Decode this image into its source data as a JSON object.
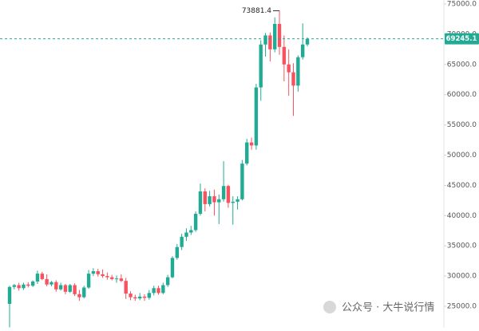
{
  "chart_data": {
    "type": "candlestick",
    "ylim": [
      21440,
      75660
    ],
    "yticks": [
      {
        "value": 75000,
        "label": "75000.0"
      },
      {
        "value": 70000,
        "label": "70000.0"
      },
      {
        "value": 65000,
        "label": "65000.0"
      },
      {
        "value": 60000,
        "label": "60000.0"
      },
      {
        "value": 55000,
        "label": "55000.0"
      },
      {
        "value": 50000,
        "label": "50000.0"
      },
      {
        "value": 45000,
        "label": "45000.0"
      },
      {
        "value": 40000,
        "label": "40000.0"
      },
      {
        "value": 35000,
        "label": "35000.0"
      },
      {
        "value": 30000,
        "label": "30000.0"
      },
      {
        "value": 25000,
        "label": "25000.0"
      }
    ],
    "up_color": "#22ab94",
    "down_color": "#f7525f",
    "open": [
      25400,
      28200,
      28500,
      28000,
      28600,
      28400,
      29100,
      30400,
      29500,
      28600,
      29000,
      27800,
      28500,
      27400,
      28500,
      27000,
      26500,
      28100,
      30400,
      30800,
      30300,
      30000,
      29800,
      29500,
      29600,
      29200,
      27100,
      26500,
      26300,
      26600,
      26400,
      27200,
      28000,
      27200,
      28500,
      29800,
      33000,
      34800,
      36500,
      37200,
      37600,
      40300,
      44000,
      41900,
      43200,
      42200,
      42700,
      44900,
      42100,
      42300,
      42700,
      48600,
      52100,
      51600,
      61200,
      68300,
      69800,
      67500,
      71700,
      67900,
      65000,
      63700,
      61500,
      66200,
      68300
    ],
    "high": [
      28400,
      28700,
      28900,
      28900,
      29000,
      29300,
      30900,
      30700,
      30300,
      29200,
      29300,
      28900,
      28700,
      28700,
      28800,
      27700,
      28400,
      31000,
      31300,
      31200,
      31100,
      30600,
      30200,
      30100,
      30300,
      29700,
      27500,
      26900,
      27200,
      27000,
      27700,
      28400,
      28400,
      28900,
      30200,
      33300,
      35300,
      37000,
      37900,
      38300,
      40700,
      45300,
      44500,
      44100,
      44300,
      43500,
      49000,
      45100,
      43200,
      43200,
      49200,
      52700,
      52900,
      61800,
      69000,
      70200,
      70300,
      72800,
      73881.4,
      69800,
      67500,
      65200,
      66500,
      71800,
      69500
    ],
    "low": [
      21500,
      27800,
      27600,
      27700,
      28100,
      28200,
      28700,
      29300,
      28300,
      28300,
      27400,
      27600,
      27000,
      27200,
      26700,
      25900,
      26300,
      27900,
      30000,
      29900,
      29700,
      29400,
      29300,
      28900,
      29000,
      26200,
      26000,
      25900,
      26000,
      25900,
      26100,
      26800,
      26900,
      27000,
      28200,
      29600,
      32700,
      34300,
      35800,
      36800,
      37300,
      40000,
      40700,
      41500,
      40000,
      38600,
      42300,
      41300,
      38500,
      41000,
      42500,
      48300,
      50900,
      50900,
      59000,
      66300,
      65500,
      67000,
      66600,
      62200,
      59800,
      56500,
      60500,
      65800,
      68000
    ],
    "close": [
      28200,
      28500,
      28000,
      28600,
      28400,
      29100,
      30400,
      29500,
      28600,
      29000,
      27800,
      28500,
      27400,
      28500,
      27000,
      26500,
      28100,
      30400,
      30800,
      30300,
      30000,
      29800,
      29500,
      29600,
      29200,
      27100,
      26500,
      26300,
      26600,
      26400,
      27200,
      28000,
      27200,
      28500,
      29800,
      33000,
      34800,
      36500,
      37200,
      37600,
      40300,
      44000,
      41900,
      43200,
      42200,
      42700,
      44900,
      42100,
      42300,
      42700,
      48600,
      52100,
      51600,
      61200,
      68300,
      69800,
      67500,
      71700,
      67900,
      65000,
      63700,
      61500,
      66200,
      68300,
      69245.1
    ],
    "last_price": 69245.1,
    "last_price_color": "#22ab94",
    "max_high": 73881.4,
    "watermark": "公众号 · 大牛说行情"
  }
}
